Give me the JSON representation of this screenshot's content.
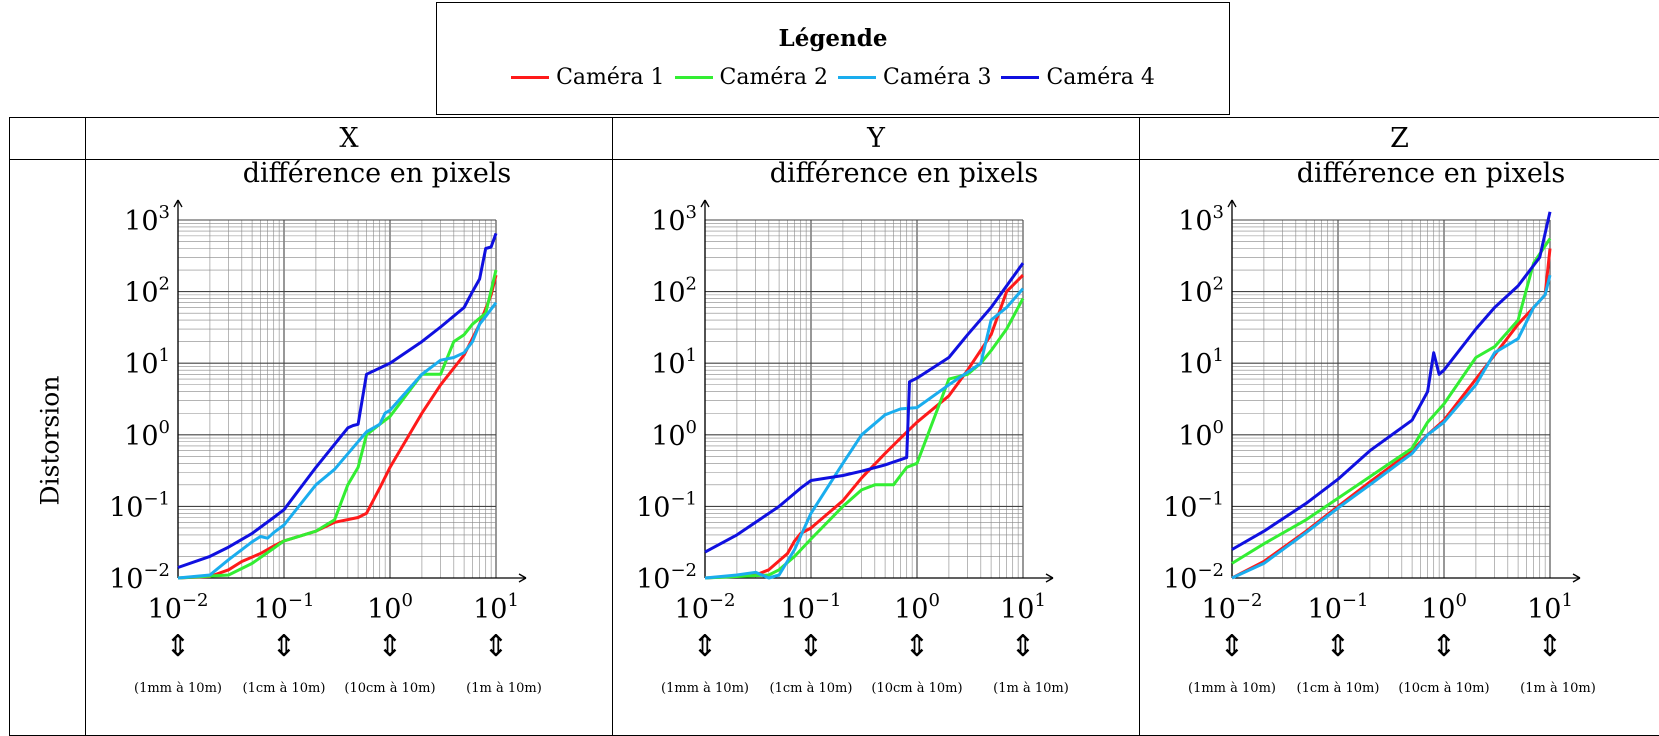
{
  "legend": {
    "title": "Légende",
    "items": [
      {
        "label": "Caméra 1",
        "color": "#ff1a1a"
      },
      {
        "label": "Caméra 2",
        "color": "#33ee33"
      },
      {
        "label": "Caméra 3",
        "color": "#1aadee"
      },
      {
        "label": "Caméra 4",
        "color": "#1010e0"
      }
    ]
  },
  "table": {
    "row_label": "Distorsion",
    "columns": [
      "X",
      "Y",
      "Z"
    ]
  },
  "chart_data": [
    {
      "type": "line",
      "panel": "X",
      "title": "différence en pixels",
      "x_scale": "log",
      "y_scale": "log",
      "xlim": [
        0.01,
        10
      ],
      "ylim": [
        0.01,
        1000
      ],
      "grid": true,
      "x_ticks": [
        "10^-2",
        "10^-1",
        "10^0",
        "10^1"
      ],
      "y_ticks": [
        "10^-2",
        "10^-1",
        "10^0",
        "10^1",
        "10^2",
        "10^3"
      ],
      "x_annotations": [
        "(1mm à 10m)",
        "(1cm à 10m)",
        "(10cm à 10m)",
        "(1m à 10m)"
      ],
      "series": [
        {
          "name": "Caméra 1",
          "color": "#ff1a1a",
          "points": [
            [
              0.01,
              0.01
            ],
            [
              0.02,
              0.0105
            ],
            [
              0.03,
              0.013
            ],
            [
              0.04,
              0.017
            ],
            [
              0.06,
              0.022
            ],
            [
              0.08,
              0.028
            ],
            [
              0.1,
              0.033
            ],
            [
              0.2,
              0.045
            ],
            [
              0.3,
              0.06
            ],
            [
              0.5,
              0.07
            ],
            [
              0.6,
              0.08
            ],
            [
              0.8,
              0.18
            ],
            [
              1,
              0.35
            ],
            [
              2,
              2
            ],
            [
              3,
              5
            ],
            [
              5,
              13
            ],
            [
              7,
              35
            ],
            [
              9,
              90
            ],
            [
              10,
              170
            ]
          ]
        },
        {
          "name": "Caméra 2",
          "color": "#33ee33",
          "points": [
            [
              0.01,
              0.01
            ],
            [
              0.03,
              0.011
            ],
            [
              0.05,
              0.016
            ],
            [
              0.08,
              0.026
            ],
            [
              0.1,
              0.033
            ],
            [
              0.2,
              0.045
            ],
            [
              0.3,
              0.065
            ],
            [
              0.4,
              0.2
            ],
            [
              0.5,
              0.35
            ],
            [
              0.6,
              1
            ],
            [
              0.8,
              1.4
            ],
            [
              1,
              1.8
            ],
            [
              2,
              7
            ],
            [
              3,
              7
            ],
            [
              4,
              20
            ],
            [
              5,
              25
            ],
            [
              6,
              35
            ],
            [
              8,
              50
            ],
            [
              10,
              200
            ]
          ]
        },
        {
          "name": "Caméra 3",
          "color": "#1aadee",
          "points": [
            [
              0.01,
              0.01
            ],
            [
              0.02,
              0.011
            ],
            [
              0.03,
              0.018
            ],
            [
              0.05,
              0.032
            ],
            [
              0.06,
              0.038
            ],
            [
              0.07,
              0.036
            ],
            [
              0.08,
              0.043
            ],
            [
              0.1,
              0.055
            ],
            [
              0.2,
              0.2
            ],
            [
              0.3,
              0.33
            ],
            [
              0.5,
              0.8
            ],
            [
              0.6,
              1.1
            ],
            [
              0.8,
              1.4
            ],
            [
              0.9,
              2
            ],
            [
              1,
              2.2
            ],
            [
              2,
              7
            ],
            [
              3,
              11
            ],
            [
              4,
              12
            ],
            [
              5,
              14
            ],
            [
              6,
              20
            ],
            [
              7,
              35
            ],
            [
              8,
              45
            ],
            [
              10,
              70
            ]
          ]
        },
        {
          "name": "Caméra 4",
          "color": "#1010e0",
          "points": [
            [
              0.01,
              0.014
            ],
            [
              0.02,
              0.02
            ],
            [
              0.03,
              0.027
            ],
            [
              0.05,
              0.042
            ],
            [
              0.08,
              0.07
            ],
            [
              0.1,
              0.09
            ],
            [
              0.2,
              0.35
            ],
            [
              0.4,
              1.25
            ],
            [
              0.45,
              1.35
            ],
            [
              0.5,
              1.4
            ],
            [
              0.6,
              7
            ],
            [
              1,
              10
            ],
            [
              2,
              20
            ],
            [
              3,
              32
            ],
            [
              5,
              60
            ],
            [
              6,
              100
            ],
            [
              7,
              150
            ],
            [
              8,
              400
            ],
            [
              9,
              420
            ],
            [
              10,
              650
            ]
          ]
        }
      ]
    },
    {
      "type": "line",
      "panel": "Y",
      "title": "différence en pixels",
      "x_scale": "log",
      "y_scale": "log",
      "xlim": [
        0.01,
        10
      ],
      "ylim": [
        0.01,
        1000
      ],
      "grid": true,
      "x_ticks": [
        "10^-2",
        "10^-1",
        "10^0",
        "10^1"
      ],
      "y_ticks": [
        "10^-2",
        "10^-1",
        "10^0",
        "10^1",
        "10^2",
        "10^3"
      ],
      "x_annotations": [
        "(1mm à 10m)",
        "(1cm à 10m)",
        "(10cm à 10m)",
        "(1m à 10m)"
      ],
      "series": [
        {
          "name": "Caméra 1",
          "color": "#ff1a1a",
          "points": [
            [
              0.01,
              0.01
            ],
            [
              0.03,
              0.011
            ],
            [
              0.04,
              0.013
            ],
            [
              0.06,
              0.022
            ],
            [
              0.07,
              0.033
            ],
            [
              0.08,
              0.042
            ],
            [
              0.1,
              0.05
            ],
            [
              0.2,
              0.12
            ],
            [
              0.3,
              0.25
            ],
            [
              0.5,
              0.55
            ],
            [
              0.7,
              0.9
            ],
            [
              1,
              1.5
            ],
            [
              2,
              3.5
            ],
            [
              3,
              8
            ],
            [
              5,
              25
            ],
            [
              7,
              100
            ],
            [
              10,
              170
            ]
          ]
        },
        {
          "name": "Caméra 2",
          "color": "#33ee33",
          "points": [
            [
              0.01,
              0.01
            ],
            [
              0.04,
              0.011
            ],
            [
              0.05,
              0.013
            ],
            [
              0.07,
              0.02
            ],
            [
              0.1,
              0.035
            ],
            [
              0.2,
              0.1
            ],
            [
              0.3,
              0.17
            ],
            [
              0.4,
              0.2
            ],
            [
              0.6,
              0.2
            ],
            [
              0.8,
              0.35
            ],
            [
              1,
              0.4
            ],
            [
              2,
              6
            ],
            [
              3,
              7
            ],
            [
              4,
              10
            ],
            [
              5,
              15
            ],
            [
              7,
              30
            ],
            [
              10,
              80
            ]
          ]
        },
        {
          "name": "Caméra 3",
          "color": "#1aadee",
          "points": [
            [
              0.01,
              0.01
            ],
            [
              0.02,
              0.011
            ],
            [
              0.03,
              0.012
            ],
            [
              0.04,
              0.01
            ],
            [
              0.05,
              0.011
            ],
            [
              0.07,
              0.025
            ],
            [
              0.1,
              0.08
            ],
            [
              0.2,
              0.4
            ],
            [
              0.3,
              1
            ],
            [
              0.5,
              1.9
            ],
            [
              0.7,
              2.3
            ],
            [
              1,
              2.4
            ],
            [
              2,
              5
            ],
            [
              4,
              10
            ],
            [
              5,
              40
            ],
            [
              7,
              60
            ],
            [
              10,
              110
            ]
          ]
        },
        {
          "name": "Caméra 4",
          "color": "#1010e0",
          "points": [
            [
              0.01,
              0.023
            ],
            [
              0.02,
              0.04
            ],
            [
              0.05,
              0.1
            ],
            [
              0.08,
              0.18
            ],
            [
              0.1,
              0.23
            ],
            [
              0.2,
              0.27
            ],
            [
              0.3,
              0.31
            ],
            [
              0.5,
              0.38
            ],
            [
              0.8,
              0.48
            ],
            [
              0.85,
              5.5
            ],
            [
              1,
              6.2
            ],
            [
              2,
              12
            ],
            [
              3,
              25
            ],
            [
              5,
              60
            ],
            [
              7,
              120
            ],
            [
              10,
              250
            ]
          ]
        }
      ]
    },
    {
      "type": "line",
      "panel": "Z",
      "title": "différence en pixels",
      "x_scale": "log",
      "y_scale": "log",
      "xlim": [
        0.01,
        10
      ],
      "ylim": [
        0.01,
        1000
      ],
      "grid": true,
      "x_ticks": [
        "10^-2",
        "10^-1",
        "10^0",
        "10^1"
      ],
      "y_ticks": [
        "10^-2",
        "10^-1",
        "10^0",
        "10^1",
        "10^2",
        "10^3"
      ],
      "x_annotations": [
        "(1mm à 10m)",
        "(1cm à 10m)",
        "(10cm à 10m)",
        "(1m à 10m)"
      ],
      "series": [
        {
          "name": "Caméra 1",
          "color": "#ff1a1a",
          "points": [
            [
              0.01,
              0.01
            ],
            [
              0.02,
              0.017
            ],
            [
              0.05,
              0.045
            ],
            [
              0.1,
              0.1
            ],
            [
              0.2,
              0.22
            ],
            [
              0.5,
              0.6
            ],
            [
              0.7,
              1
            ],
            [
              1,
              1.6
            ],
            [
              2,
              6
            ],
            [
              3,
              13
            ],
            [
              5,
              35
            ],
            [
              7,
              60
            ],
            [
              9,
              90
            ],
            [
              10,
              400
            ]
          ]
        },
        {
          "name": "Caméra 2",
          "color": "#33ee33",
          "points": [
            [
              0.01,
              0.016
            ],
            [
              0.02,
              0.03
            ],
            [
              0.05,
              0.065
            ],
            [
              0.1,
              0.13
            ],
            [
              0.2,
              0.26
            ],
            [
              0.5,
              0.65
            ],
            [
              0.7,
              1.5
            ],
            [
              1,
              2.7
            ],
            [
              2,
              12
            ],
            [
              3,
              17
            ],
            [
              5,
              40
            ],
            [
              7,
              250
            ],
            [
              10,
              550
            ]
          ]
        },
        {
          "name": "Caméra 3",
          "color": "#1aadee",
          "points": [
            [
              0.01,
              0.01
            ],
            [
              0.02,
              0.016
            ],
            [
              0.05,
              0.043
            ],
            [
              0.1,
              0.095
            ],
            [
              0.2,
              0.2
            ],
            [
              0.5,
              0.55
            ],
            [
              0.7,
              1
            ],
            [
              1,
              1.5
            ],
            [
              2,
              5
            ],
            [
              3,
              14
            ],
            [
              5,
              22
            ],
            [
              7,
              60
            ],
            [
              9,
              90
            ],
            [
              10,
              170
            ]
          ]
        },
        {
          "name": "Caméra 4",
          "color": "#1010e0",
          "points": [
            [
              0.01,
              0.025
            ],
            [
              0.02,
              0.045
            ],
            [
              0.05,
              0.11
            ],
            [
              0.1,
              0.24
            ],
            [
              0.2,
              0.6
            ],
            [
              0.5,
              1.6
            ],
            [
              0.7,
              4
            ],
            [
              0.8,
              14
            ],
            [
              0.9,
              7
            ],
            [
              1,
              8
            ],
            [
              2,
              30
            ],
            [
              3,
              60
            ],
            [
              5,
              120
            ],
            [
              8,
              300
            ],
            [
              10,
              1300
            ]
          ]
        }
      ]
    }
  ]
}
